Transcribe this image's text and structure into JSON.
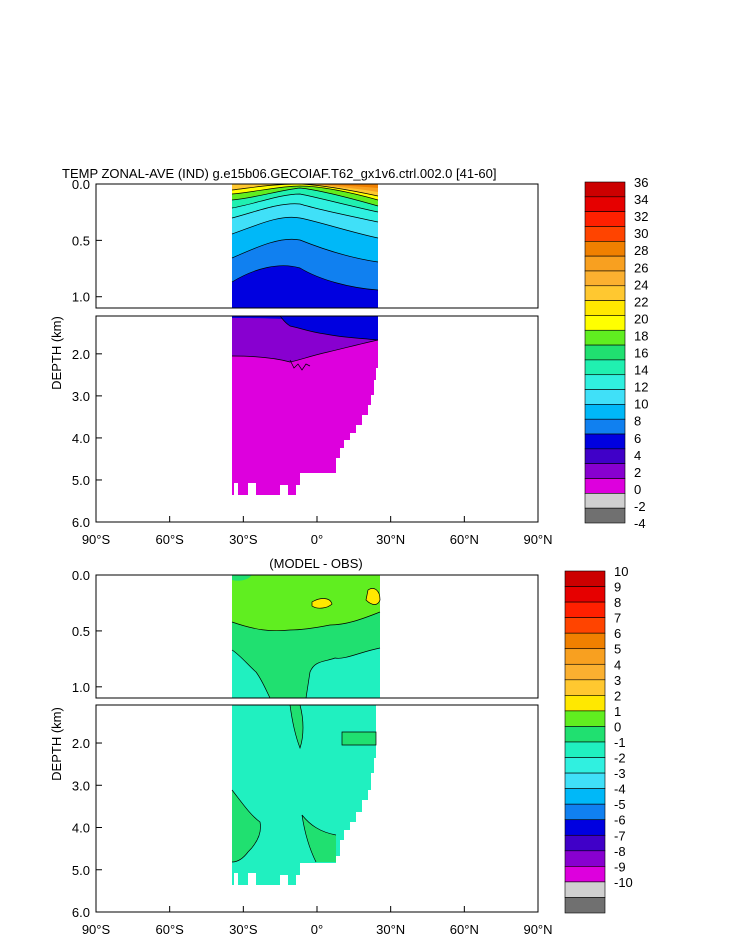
{
  "chart_data": [
    {
      "type": "heatmap",
      "title": "TEMP ZONAL-AVE (IND) g.e15b06.GECOIAF.T62_gx1v6.ctrl.002.0 [41-60]",
      "ylabel": "DEPTH (km)",
      "xlim": [
        -90,
        90
      ],
      "ylim_upper": [
        1.1,
        0
      ],
      "ylim_lower": [
        6,
        1.1
      ],
      "x_ticks": [
        "90°S",
        "60°S",
        "30°S",
        "0°",
        "30°N",
        "60°N",
        "90°N"
      ],
      "y_ticks_upper": [
        "0.0",
        "0.5",
        "1.0"
      ],
      "y_ticks_lower": [
        "2.0",
        "3.0",
        "4.0",
        "5.0",
        "6.0"
      ],
      "colorbar_labels": [
        "36",
        "34",
        "32",
        "30",
        "28",
        "26",
        "24",
        "22",
        "20",
        "18",
        "16",
        "14",
        "12",
        "10",
        "8",
        "6",
        "4",
        "2",
        "0",
        "-2",
        "-4"
      ],
      "colorbar_colors": [
        "#cc0000",
        "#e60000",
        "#ff2000",
        "#ff4400",
        "#f08000",
        "#f8a020",
        "#fbb030",
        "#ffc830",
        "#ffe800",
        "#ffff00",
        "#60ee20",
        "#20e070",
        "#20f0b0",
        "#30f0e0",
        "#40e0f8",
        "#00b8f8",
        "#1080f0",
        "#0000e0",
        "#4000c8",
        "#8800d0",
        "#dd00dd",
        "#d0d0d0",
        "#707070"
      ]
    },
    {
      "type": "heatmap",
      "title": "(MODEL - OBS)",
      "ylabel": "DEPTH (km)",
      "xlim": [
        -90,
        90
      ],
      "ylim_upper": [
        1.1,
        0
      ],
      "ylim_lower": [
        6,
        1.1
      ],
      "x_ticks": [
        "90°S",
        "60°S",
        "30°S",
        "0°",
        "30°N",
        "60°N",
        "90°N"
      ],
      "y_ticks_upper": [
        "0.0",
        "0.5",
        "1.0"
      ],
      "y_ticks_lower": [
        "2.0",
        "3.0",
        "4.0",
        "5.0",
        "6.0"
      ],
      "colorbar_labels": [
        "10",
        "9",
        "8",
        "7",
        "6",
        "5",
        "4",
        "3",
        "2",
        "1",
        "0",
        "-1",
        "-2",
        "-3",
        "-4",
        "-5",
        "-6",
        "-7",
        "-8",
        "-9",
        "-10"
      ],
      "colorbar_colors": [
        "#cc0000",
        "#e60000",
        "#ff2000",
        "#ff4400",
        "#f08000",
        "#f8a020",
        "#fbb030",
        "#ffc830",
        "#ffe800",
        "#60ee20",
        "#20e070",
        "#20f0c0",
        "#30f0e0",
        "#40e0f8",
        "#00b8f8",
        "#1080f0",
        "#0000e0",
        "#4000c8",
        "#8800d0",
        "#dd00dd",
        "#d0d0d0",
        "#707070"
      ]
    }
  ]
}
